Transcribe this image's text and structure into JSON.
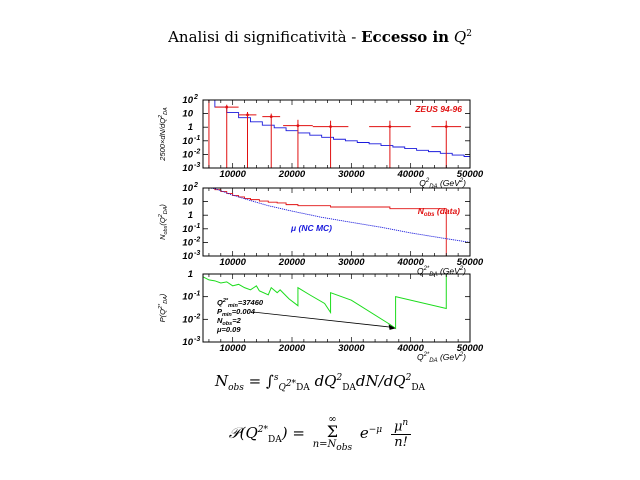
{
  "title": {
    "text": "Analisi di significatività - ",
    "bold": "Eccesso in",
    "var": "Q",
    "exp": "2"
  },
  "formulas": {
    "nobs_lhs": "N",
    "nobs_lhs_sub": "obs",
    "nobs_rhs": "= ∫",
    "nobs_int_lo": "Q",
    "nobs_int_lo_sup": "2*",
    "nobs_int_lo_sub": "DA",
    "nobs_int_hi": "s",
    "nobs_body": "dQ",
    "nobs_body_sup": "2",
    "nobs_body_sub": "DA",
    "nobs_body2": "dN/dQ",
    "nobs_body2_sup": "2",
    "nobs_body2_sub": "DA",
    "p_lhs": "𝒫(Q",
    "p_lhs_sup": "2*",
    "p_lhs_sub": "DA",
    "p_eq": ") =",
    "sum_top": "∞",
    "sum_sig": "Σ",
    "sum_bot": "n=N",
    "sum_bot_sub": "obs",
    "p_exp": "e",
    "p_exp_sup": "−μ",
    "num": "μ",
    "num_sup": "n",
    "den": "n!"
  },
  "chart_data": [
    {
      "type": "line",
      "annotation": "ZEUS 94-96",
      "xlabel": "Q",
      "xlabel_sup": "2",
      "xlabel_sub": "DA",
      "xlabel_unit": "(GeV",
      "xlabel_unit_sup": "2",
      "xlabel_unit_end": ")",
      "ylabel": "2500×dN/dQ",
      "ylabel_sup": "2",
      "ylabel_sub": "DA",
      "xlim": [
        5000,
        50000
      ],
      "ylim_log10": [
        -3,
        2
      ],
      "ylog": true,
      "x_ticks": [
        "10000",
        "20000",
        "30000",
        "40000",
        "50000"
      ],
      "y_ticks": [
        {
          "base": "10",
          "exp": "2"
        },
        {
          "base": "10",
          "exp": ""
        },
        {
          "base": "1",
          "exp": ""
        },
        {
          "base": "10",
          "exp": "-1"
        },
        {
          "base": "10",
          "exp": "-2"
        },
        {
          "base": "10",
          "exp": "-3"
        }
      ],
      "series": [
        {
          "kind": "mc_step",
          "color": "#1a1adc",
          "x": [
            5000,
            7000,
            9000,
            11000,
            13000,
            15000,
            17000,
            19000,
            21000,
            23000,
            25000,
            27000,
            29000,
            31000,
            33000,
            35000,
            37000,
            39000,
            41000,
            43000,
            45000,
            47000,
            49000,
            50000
          ],
          "y": [
            100,
            30,
            12,
            5,
            2.5,
            1.4,
            0.9,
            0.55,
            0.38,
            0.26,
            0.18,
            0.13,
            0.1,
            0.075,
            0.06,
            0.045,
            0.035,
            0.027,
            0.02,
            0.016,
            0.012,
            0.009,
            0.007,
            0.007
          ]
        },
        {
          "kind": "data_points",
          "color": "#e01010",
          "x": [
            6000,
            9000,
            12500,
            16500,
            21000,
            26500,
            36500,
            46000
          ],
          "y": [
            110,
            30,
            8,
            6,
            1.3,
            1.1,
            1.1,
            1.1
          ],
          "xerr": [
            1000,
            2000,
            1500,
            1500,
            2500,
            3000,
            3500,
            2500
          ],
          "yerr_lo": [
            0.001,
            0.001,
            0.001,
            0.001,
            0.001,
            0.001,
            0.001,
            0.001
          ],
          "yerr_hi": [
            150,
            45,
            13,
            10,
            3.5,
            3.0,
            3.0,
            3.0
          ]
        }
      ]
    },
    {
      "type": "line",
      "annotation_obs": "N",
      "annotation_obs_sub": "obs",
      "annotation_obs_tail": " (data)",
      "annotation_mc": "μ (NC MC)",
      "xlabel": "Q",
      "xlabel_sup": "2*",
      "xlabel_sub": "DA",
      "xlabel_unit": "(GeV",
      "xlabel_unit_sup": "2",
      "xlabel_unit_end": ")",
      "ylabel": "N",
      "ylabel_sub": "obs",
      "ylabel_paren": "(Q",
      "ylabel_paren_sup": "2",
      "ylabel_paren_sub": "DA",
      "ylabel_end": ")",
      "xlim": [
        5000,
        50000
      ],
      "ylim_log10": [
        -3,
        2
      ],
      "ylog": true,
      "x_ticks": [
        "10000",
        "20000",
        "30000",
        "40000",
        "50000"
      ],
      "y_ticks": [
        {
          "base": "10",
          "exp": "2"
        },
        {
          "base": "10",
          "exp": ""
        },
        {
          "base": "1",
          "exp": ""
        },
        {
          "base": "10",
          "exp": "-1"
        },
        {
          "base": "10",
          "exp": "-2"
        },
        {
          "base": "10",
          "exp": "-3"
        }
      ],
      "series": [
        {
          "kind": "obs_step",
          "color": "#e01010",
          "x": [
            5000,
            6000,
            7000,
            8000,
            9000,
            10000,
            11000,
            12000,
            13000,
            14500,
            16000,
            17500,
            19000,
            21000,
            26500,
            36500,
            46000,
            46000
          ],
          "y": [
            220,
            120,
            75,
            55,
            40,
            28,
            22,
            17,
            14,
            11,
            9,
            8,
            6,
            5,
            4,
            3,
            2,
            0.001
          ]
        },
        {
          "kind": "mc_curve",
          "color": "#1a1adc",
          "x": [
            5000,
            7000,
            10000,
            13000,
            16000,
            20000,
            25000,
            30000,
            35000,
            40000,
            45000,
            50000
          ],
          "y": [
            200,
            90,
            30,
            12,
            5,
            2,
            0.7,
            0.3,
            0.13,
            0.05,
            0.022,
            0.01
          ]
        }
      ]
    },
    {
      "type": "line",
      "xlabel": "Q",
      "xlabel_sup": "2*",
      "xlabel_sub": "DA",
      "xlabel_unit": "(GeV",
      "xlabel_unit_sup": "2",
      "xlabel_unit_end": ")",
      "ylabel": "P(Q",
      "ylabel_sup": "2*",
      "ylabel_sub": "DA",
      "ylabel_end": ")",
      "xlim": [
        5000,
        50000
      ],
      "ylim_log10": [
        -3,
        0
      ],
      "ylog": true,
      "x_ticks": [
        "10000",
        "20000",
        "30000",
        "40000",
        "50000"
      ],
      "y_ticks": [
        {
          "base": "1",
          "exp": ""
        },
        {
          "base": "10",
          "exp": "-1"
        },
        {
          "base": "10",
          "exp": "-2"
        },
        {
          "base": "10",
          "exp": "-3"
        }
      ],
      "annotation_lines": [
        {
          "t": "Q",
          "sup": "2*",
          "sub": "min",
          "tail": "=37460"
        },
        {
          "t": "P",
          "sup": "",
          "sub": "min",
          "tail": "=0.004"
        },
        {
          "t": "N",
          "sup": "",
          "sub": "obs",
          "tail": "=2"
        },
        {
          "t": "μ",
          "sup": "",
          "sub": "",
          "tail": "=0.09"
        }
      ],
      "arrow_target": {
        "x": 37460,
        "y": 0.004
      },
      "series": [
        {
          "kind": "prob",
          "color": "#1cdc1c",
          "x": [
            5000,
            6000,
            7000,
            8000,
            9000,
            10000,
            11000,
            12000,
            13000,
            14000,
            14500,
            16000,
            16500,
            17500,
            18000,
            19500,
            21000,
            21000,
            23000,
            25500,
            26500,
            26500,
            30000,
            36500,
            37460,
            37460,
            46000,
            46000,
            47000
          ],
          "y": [
            0.75,
            0.55,
            0.5,
            0.4,
            0.45,
            0.3,
            0.35,
            0.25,
            0.2,
            0.3,
            0.18,
            0.12,
            0.25,
            0.15,
            0.2,
            0.08,
            0.04,
            0.25,
            0.12,
            0.05,
            0.02,
            0.15,
            0.07,
            0.006,
            0.004,
            0.1,
            0.03,
            1.0,
            1.0
          ]
        }
      ]
    }
  ]
}
